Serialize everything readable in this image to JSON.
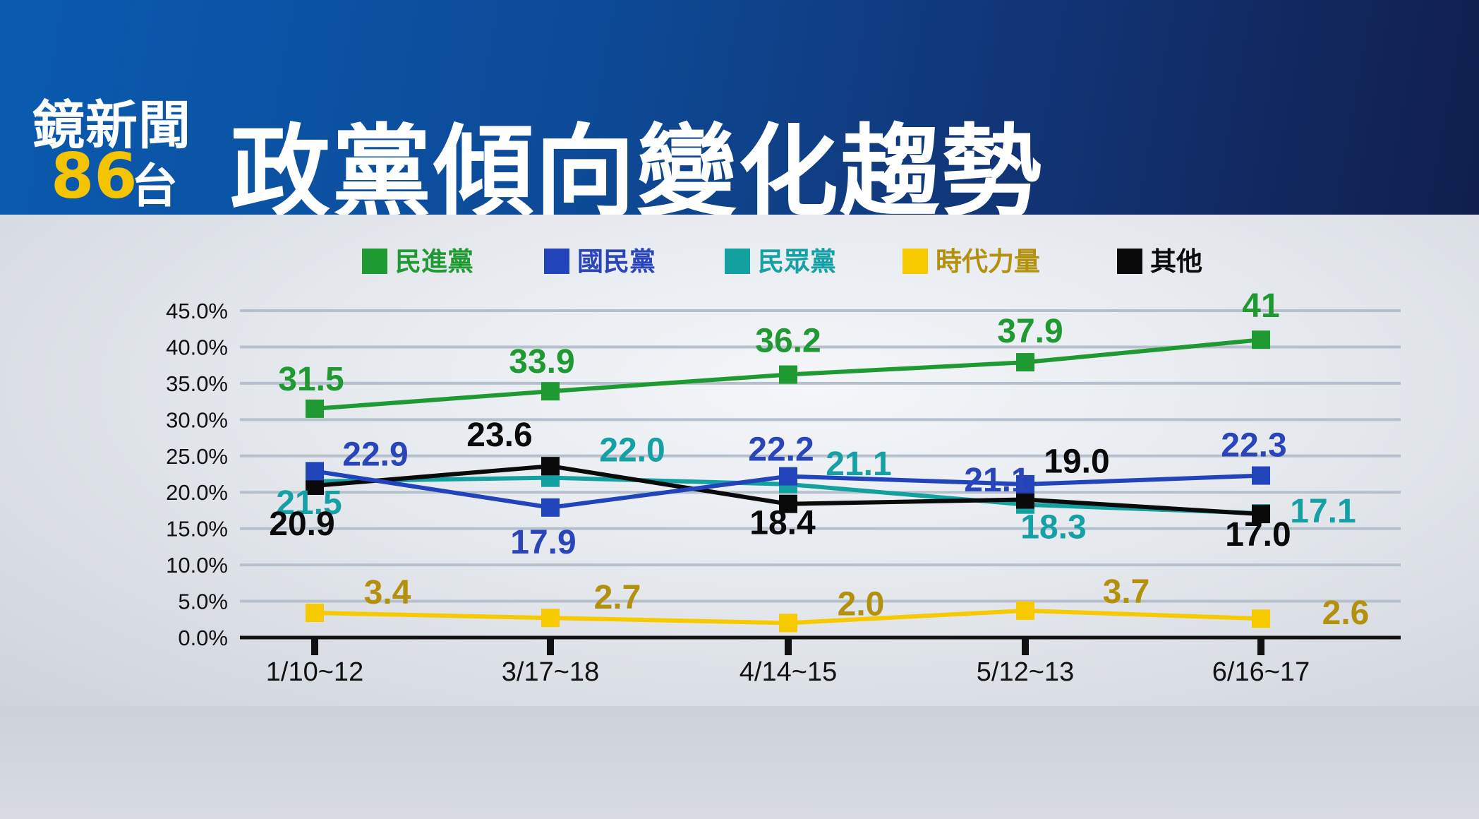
{
  "header": {
    "logo_line1": "鏡新聞",
    "logo_number": "86",
    "logo_suffix": "台",
    "title": "政黨傾向變化趨勢"
  },
  "chart_data": {
    "type": "line",
    "categories": [
      "1/10~12",
      "3/17~18",
      "4/14~15",
      "5/12~13",
      "6/16~17"
    ],
    "y_ticks": [
      "0.0%",
      "5.0%",
      "10.0%",
      "15.0%",
      "20.0%",
      "25.0%",
      "30.0%",
      "35.0%",
      "40.0%",
      "45.0%"
    ],
    "ylim": [
      0,
      45
    ],
    "grid": true,
    "legend_position": "top",
    "series": [
      {
        "name": "民進黨",
        "color": "#1f9a32",
        "label_color": "#1f9a32",
        "values": [
          31.5,
          33.9,
          36.2,
          37.9,
          41
        ],
        "labels": [
          "31.5",
          "33.9",
          "36.2",
          "37.9",
          "41"
        ]
      },
      {
        "name": "國民黨",
        "color": "#2244bb",
        "label_color": "#2a45b8",
        "values": [
          22.9,
          17.9,
          22.2,
          21.1,
          22.3
        ],
        "labels": [
          "22.9",
          "17.9",
          "22.2",
          "21.1",
          "22.3"
        ]
      },
      {
        "name": "民眾黨",
        "color": "#12a0a0",
        "label_color": "#14a0a4",
        "values": [
          21.5,
          22.0,
          21.1,
          18.3,
          17.1
        ],
        "labels": [
          "21.5",
          "22.0",
          "21.1",
          "18.3",
          "17.1"
        ]
      },
      {
        "name": "時代力量",
        "color": "#f7ca00",
        "label_color": "#b3900d",
        "values": [
          3.4,
          2.7,
          2.0,
          3.7,
          2.6
        ],
        "labels": [
          "3.4",
          "2.7",
          "2.0",
          "3.7",
          "2.6"
        ]
      },
      {
        "name": "其他",
        "color": "#0a0a0a",
        "label_color": "#0a0a0a",
        "values": [
          20.9,
          23.6,
          18.4,
          19.0,
          17.0
        ],
        "labels": [
          "20.9",
          "23.6",
          "18.4",
          "19.0",
          "17.0"
        ]
      }
    ]
  }
}
